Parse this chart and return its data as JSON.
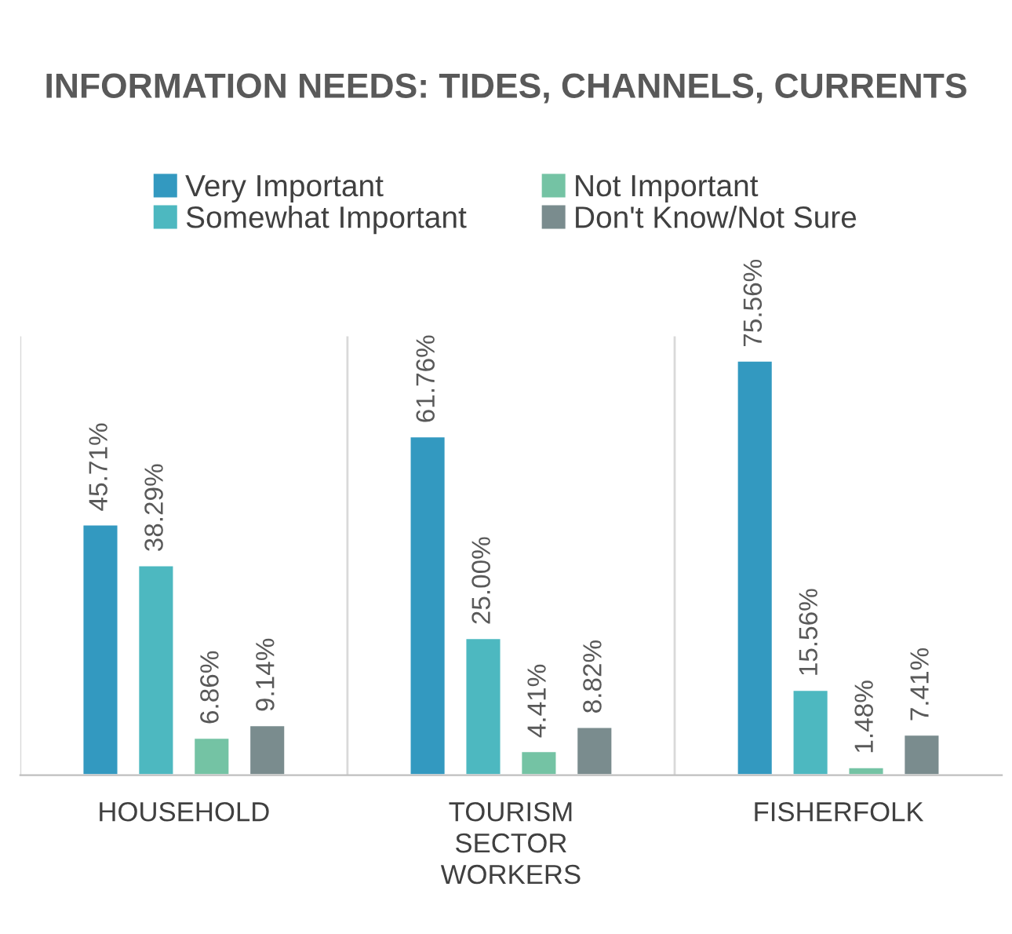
{
  "chart_data": {
    "type": "bar",
    "title": "INFORMATION NEEDS: TIDES, CHANNELS, CURRENTS",
    "categories": [
      "HOUSEHOLD",
      "TOURISM\nSECTOR\nWORKERS",
      "FISHERFOLK"
    ],
    "series": [
      {
        "name": "Very Important",
        "color": "#3399c0",
        "values": [
          45.71,
          61.76,
          75.56
        ],
        "value_labels": [
          "45.71%",
          "61.76%",
          "75.56%"
        ]
      },
      {
        "name": "Somewhat Important",
        "color": "#4db8c0",
        "values": [
          38.29,
          25.0,
          15.56
        ],
        "value_labels": [
          "38.29%",
          "25.00%",
          "15.56%"
        ]
      },
      {
        "name": "Not Important",
        "color": "#74c3a4",
        "values": [
          6.86,
          4.41,
          1.48
        ],
        "value_labels": [
          "6.86%",
          "4.41%",
          "1.48%"
        ]
      },
      {
        "name": "Don't Know/Not Sure",
        "color": "#7a8c8e",
        "values": [
          9.14,
          8.82,
          7.41
        ],
        "value_labels": [
          "9.14%",
          "8.82%",
          "7.41%"
        ]
      }
    ],
    "ylim": [
      0,
      80
    ],
    "tick_labels": "x",
    "legend": "top",
    "grid": false
  }
}
